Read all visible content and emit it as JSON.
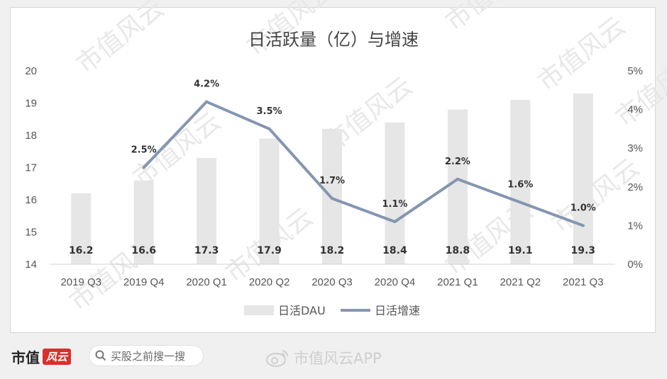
{
  "chart_data": {
    "type": "bar",
    "title": "日活跃量（亿）与增速",
    "categories": [
      "2019 Q3",
      "2019 Q4",
      "2020 Q1",
      "2020 Q2",
      "2020 Q3",
      "2020 Q4",
      "2021 Q1",
      "2021 Q2",
      "2021 Q3"
    ],
    "series": [
      {
        "name": "日活DAU",
        "type": "bar",
        "axis": "left",
        "values": [
          16.2,
          16.6,
          17.3,
          17.9,
          18.2,
          18.4,
          18.8,
          19.1,
          19.3
        ],
        "labels": [
          "16.2",
          "16.6",
          "17.3",
          "17.9",
          "18.2",
          "18.4",
          "18.8",
          "19.1",
          "19.3"
        ],
        "color": "#e6e6e6"
      },
      {
        "name": "日活增速",
        "type": "line",
        "axis": "right",
        "values": [
          null,
          2.5,
          4.2,
          3.5,
          1.7,
          1.1,
          2.2,
          1.6,
          1.0
        ],
        "labels": [
          "",
          "2.5%",
          "4.2%",
          "3.5%",
          "1.7%",
          "1.1%",
          "2.2%",
          "1.6%",
          "1.0%"
        ],
        "color": "#8496b0"
      }
    ],
    "y_left": {
      "min": 14,
      "max": 20,
      "ticks": [
        "14",
        "15",
        "16",
        "17",
        "18",
        "19",
        "20"
      ]
    },
    "y_right": {
      "min": 0,
      "max": 5,
      "ticks": [
        "0%",
        "1%",
        "2%",
        "3%",
        "4%",
        "5%"
      ]
    },
    "grid": false,
    "legend": "bottom"
  },
  "watermark": "市值风云",
  "footer": {
    "brand_text": "市值",
    "brand_mark": "风云",
    "search_text": "买股之前搜一搜",
    "search_icon": "search-icon",
    "weibo_text": "市值风云APP",
    "weibo_icon": "weibo-icon"
  }
}
